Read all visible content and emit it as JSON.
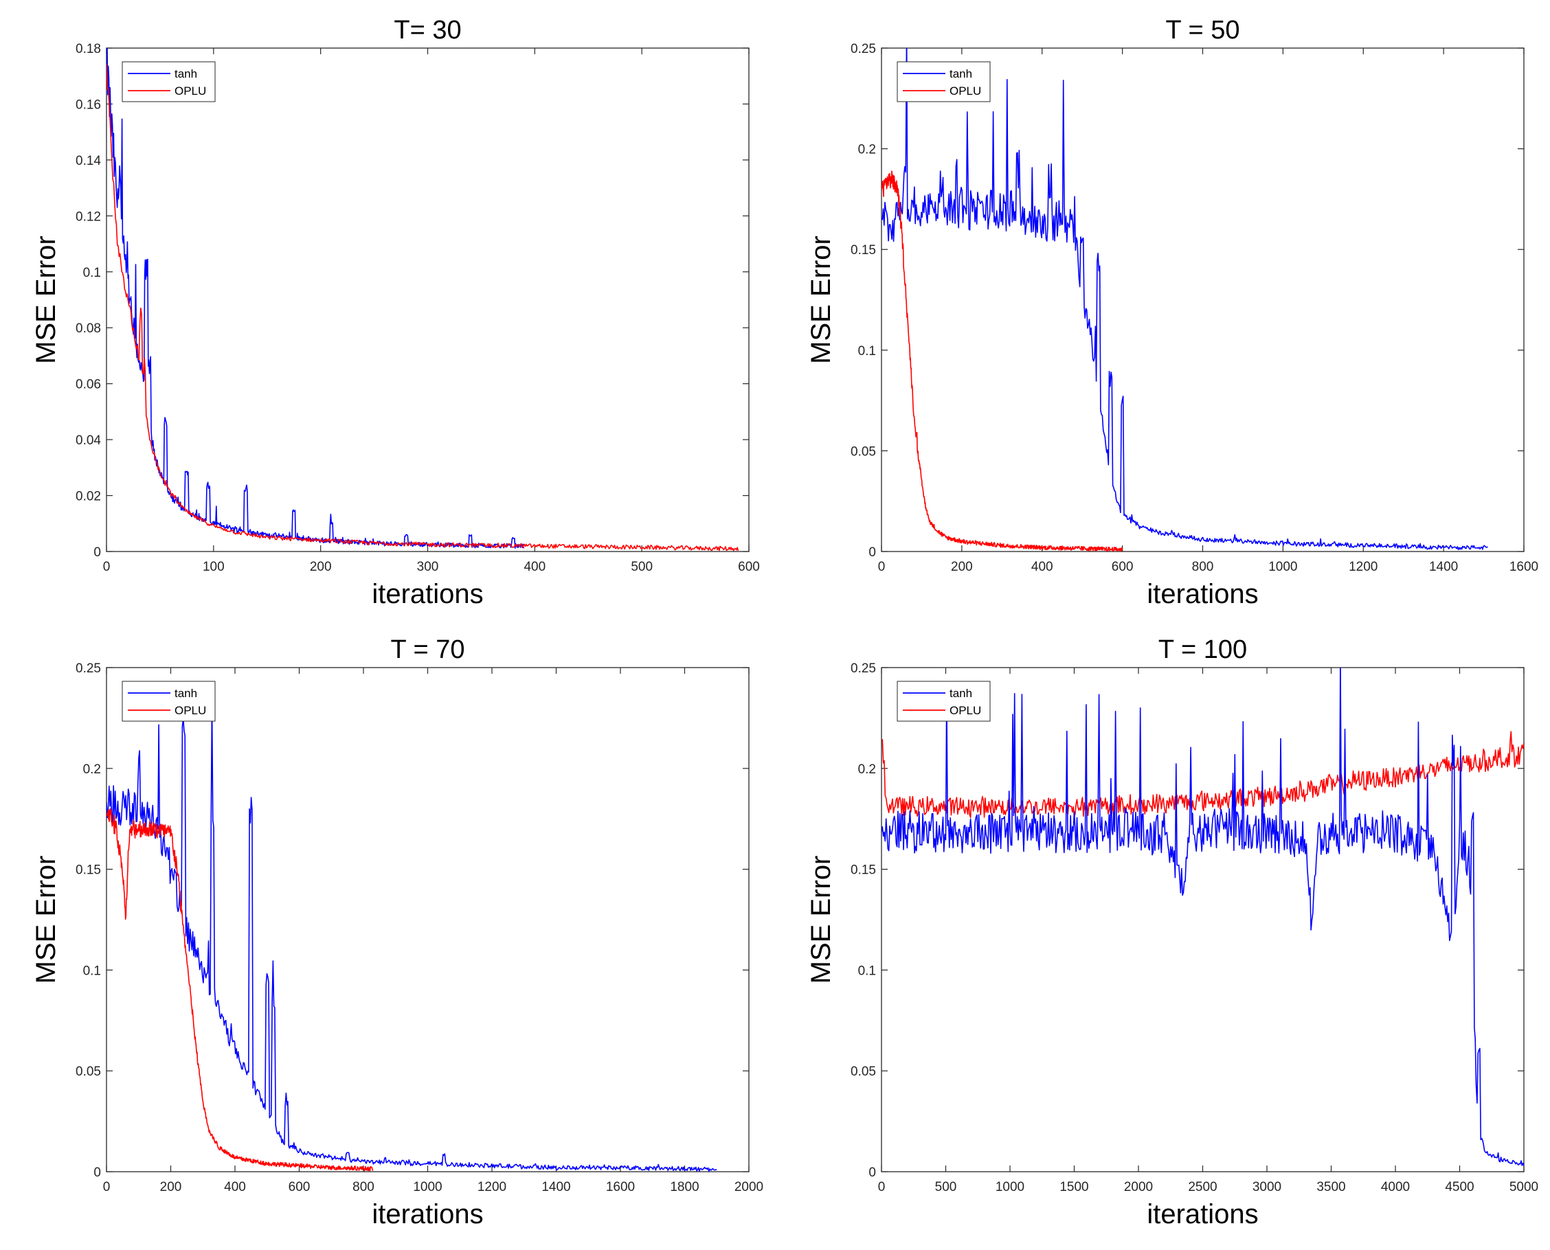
{
  "chart_data": [
    {
      "type": "line",
      "title": "T= 30",
      "xlabel": "iterations",
      "ylabel": "MSE Error",
      "xlim": [
        0,
        600
      ],
      "ylim": [
        0,
        0.18
      ],
      "xticks": [
        0,
        100,
        200,
        300,
        400,
        500,
        600
      ],
      "yticks": [
        0,
        0.02,
        0.04,
        0.06,
        0.08,
        0.1,
        0.12,
        0.14,
        0.16,
        0.18
      ],
      "xtick_labels": [
        "0",
        "100",
        "200",
        "300",
        "400",
        "500",
        "600"
      ],
      "ytick_labels": [
        "0",
        "0.02",
        "0.04",
        "0.06",
        "0.08",
        "0.1",
        "0.12",
        "0.14",
        "0.16",
        "0.18"
      ],
      "legend_position": "top-left",
      "series": [
        {
          "name": "tanh",
          "color": "#0000ff",
          "x": [
            0,
            5,
            10,
            15,
            20,
            25,
            30,
            35,
            40,
            45,
            50,
            60,
            70,
            80,
            100,
            120,
            150,
            200,
            250,
            300,
            350,
            390
          ],
          "y": [
            0.175,
            0.15,
            0.125,
            0.11,
            0.095,
            0.08,
            0.07,
            0.06,
            0.045,
            0.035,
            0.028,
            0.02,
            0.016,
            0.013,
            0.01,
            0.008,
            0.006,
            0.004,
            0.003,
            0.0025,
            0.002,
            0.002
          ],
          "spikes": [
            [
              12,
              0.14
            ],
            [
              37,
              0.105
            ],
            [
              40,
              0.07
            ],
            [
              55,
              0.048
            ],
            [
              75,
              0.03
            ],
            [
              95,
              0.025
            ],
            [
              130,
              0.024
            ],
            [
              175,
              0.015
            ],
            [
              210,
              0.011
            ],
            [
              280,
              0.006
            ],
            [
              340,
              0.006
            ],
            [
              380,
              0.005
            ]
          ]
        },
        {
          "name": "OPLU",
          "color": "#ff0000",
          "x": [
            0,
            5,
            10,
            15,
            20,
            25,
            30,
            35,
            40,
            50,
            60,
            70,
            80,
            100,
            120,
            150,
            200,
            250,
            300,
            400,
            500,
            590
          ],
          "y": [
            0.175,
            0.14,
            0.11,
            0.1,
            0.09,
            0.08,
            0.07,
            0.055,
            0.04,
            0.028,
            0.021,
            0.016,
            0.013,
            0.009,
            0.007,
            0.005,
            0.004,
            0.003,
            0.0025,
            0.002,
            0.0015,
            0.001
          ],
          "spikes": [
            [
              32,
              0.09
            ],
            [
              35,
              0.07
            ]
          ]
        }
      ]
    },
    {
      "type": "line",
      "title": "T = 50",
      "xlabel": "iterations",
      "ylabel": "MSE Error",
      "xlim": [
        0,
        1600
      ],
      "ylim": [
        0,
        0.25
      ],
      "xticks": [
        0,
        200,
        400,
        600,
        800,
        1000,
        1200,
        1400,
        1600
      ],
      "yticks": [
        0,
        0.05,
        0.1,
        0.15,
        0.2,
        0.25
      ],
      "xtick_labels": [
        "0",
        "200",
        "400",
        "600",
        "800",
        "1000",
        "1200",
        "1400",
        "1600"
      ],
      "ytick_labels": [
        "0",
        "0.05",
        "0.1",
        "0.15",
        "0.2",
        "0.25"
      ],
      "legend_position": "top-left",
      "series": [
        {
          "name": "tanh",
          "color": "#0000ff",
          "x": [
            0,
            20,
            40,
            60,
            100,
            200,
            300,
            350,
            400,
            450,
            480,
            500,
            520,
            540,
            560,
            580,
            600,
            650,
            700,
            800,
            1000,
            1200,
            1400,
            1510
          ],
          "y": [
            0.17,
            0.16,
            0.165,
            0.172,
            0.17,
            0.17,
            0.17,
            0.168,
            0.16,
            0.165,
            0.16,
            0.12,
            0.11,
            0.08,
            0.05,
            0.03,
            0.018,
            0.012,
            0.009,
            0.006,
            0.004,
            0.003,
            0.002,
            0.002
          ],
          "spikes": [
            [
              60,
              0.205
            ],
            [
              150,
              0.19
            ],
            [
              340,
              0.2
            ],
            [
              420,
              0.195
            ],
            [
              500,
              0.16
            ],
            [
              540,
              0.15
            ],
            [
              570,
              0.09
            ],
            [
              600,
              0.08
            ]
          ]
        },
        {
          "name": "OPLU",
          "color": "#ff0000",
          "x": [
            0,
            20,
            40,
            50,
            60,
            70,
            80,
            90,
            100,
            110,
            120,
            140,
            160,
            200,
            250,
            300,
            400,
            500,
            600
          ],
          "y": [
            0.18,
            0.185,
            0.18,
            0.16,
            0.13,
            0.1,
            0.07,
            0.05,
            0.035,
            0.022,
            0.015,
            0.01,
            0.007,
            0.005,
            0.004,
            0.003,
            0.002,
            0.0015,
            0.001
          ],
          "spikes": [
            [
              30,
              0.188
            ],
            [
              85,
              0.06
            ]
          ]
        }
      ]
    },
    {
      "type": "line",
      "title": "T = 70",
      "xlabel": "iterations",
      "ylabel": "MSE Error",
      "xlim": [
        0,
        2000
      ],
      "ylim": [
        0,
        0.25
      ],
      "xticks": [
        0,
        200,
        400,
        600,
        800,
        1000,
        1200,
        1400,
        1600,
        1800,
        2000
      ],
      "yticks": [
        0,
        0.05,
        0.1,
        0.15,
        0.2,
        0.25
      ],
      "xtick_labels": [
        "0",
        "200",
        "400",
        "600",
        "800",
        "1000",
        "1200",
        "1400",
        "1600",
        "1800",
        "2000"
      ],
      "ytick_labels": [
        "0",
        "0.05",
        "0.1",
        "0.15",
        "0.2",
        "0.25"
      ],
      "legend_position": "top-left",
      "series": [
        {
          "name": "tanh",
          "color": "#0000ff",
          "x": [
            0,
            50,
            100,
            150,
            200,
            250,
            300,
            350,
            400,
            450,
            500,
            550,
            600,
            700,
            800,
            1000,
            1200,
            1400,
            1600,
            1800,
            1900
          ],
          "y": [
            0.185,
            0.18,
            0.18,
            0.175,
            0.15,
            0.12,
            0.1,
            0.08,
            0.06,
            0.045,
            0.03,
            0.015,
            0.01,
            0.007,
            0.005,
            0.004,
            0.003,
            0.002,
            0.002,
            0.0015,
            0.001
          ],
          "spikes": [
            [
              100,
              0.21
            ],
            [
              240,
              0.225
            ],
            [
              330,
              0.18
            ],
            [
              450,
              0.187
            ],
            [
              500,
              0.1
            ],
            [
              520,
              0.09
            ],
            [
              560,
              0.035
            ],
            [
              750,
              0.01
            ],
            [
              1050,
              0.009
            ]
          ]
        },
        {
          "name": "OPLU",
          "color": "#ff0000",
          "x": [
            0,
            30,
            50,
            60,
            70,
            80,
            100,
            150,
            200,
            220,
            240,
            260,
            280,
            300,
            320,
            350,
            400,
            500,
            600,
            700,
            830
          ],
          "y": [
            0.18,
            0.17,
            0.15,
            0.125,
            0.165,
            0.17,
            0.17,
            0.17,
            0.168,
            0.15,
            0.12,
            0.09,
            0.06,
            0.035,
            0.02,
            0.012,
            0.007,
            0.004,
            0.003,
            0.002,
            0.0015
          ],
          "spikes": [
            [
              60,
              0.12
            ]
          ]
        }
      ]
    },
    {
      "type": "line",
      "title": "T = 100",
      "xlabel": "iterations",
      "ylabel": "MSE Error",
      "xlim": [
        0,
        5000
      ],
      "ylim": [
        0,
        0.25
      ],
      "xticks": [
        0,
        500,
        1000,
        1500,
        2000,
        2500,
        3000,
        3500,
        4000,
        4500,
        5000
      ],
      "yticks": [
        0,
        0.05,
        0.1,
        0.15,
        0.2,
        0.25
      ],
      "xtick_labels": [
        "0",
        "500",
        "1000",
        "1500",
        "2000",
        "2500",
        "3000",
        "3500",
        "4000",
        "4500",
        "5000"
      ],
      "ytick_labels": [
        "0",
        "0.05",
        "0.1",
        "0.15",
        "0.2",
        "0.25"
      ],
      "legend_position": "top-left",
      "series": [
        {
          "name": "tanh",
          "color": "#0000ff",
          "x": [
            0,
            500,
            1000,
            1500,
            2000,
            2100,
            2200,
            2300,
            2350,
            2400,
            2600,
            3000,
            3300,
            3350,
            3400,
            3800,
            4000,
            4300,
            4450,
            4500,
            4550,
            4600,
            4620,
            4650,
            4700,
            4800,
            5000
          ],
          "y": [
            0.17,
            0.168,
            0.168,
            0.168,
            0.17,
            0.165,
            0.17,
            0.15,
            0.14,
            0.168,
            0.17,
            0.168,
            0.165,
            0.12,
            0.168,
            0.168,
            0.168,
            0.16,
            0.11,
            0.168,
            0.16,
            0.12,
            0.05,
            0.02,
            0.01,
            0.006,
            0.004
          ],
          "spikes": [
            [
              2350,
              0.135
            ],
            [
              3350,
              0.115
            ],
            [
              3800,
              0.112
            ],
            [
              4450,
              0.105
            ],
            [
              4600,
              0.19
            ],
            [
              4450,
              0.22
            ],
            [
              4650,
              0.065
            ]
          ]
        },
        {
          "name": "OPLU",
          "color": "#ff0000",
          "x": [
            0,
            20,
            50,
            200,
            500,
            1000,
            1500,
            2000,
            2500,
            3000,
            3200,
            3500,
            4000,
            4500,
            5000
          ],
          "y": [
            0.19,
            0.185,
            0.182,
            0.181,
            0.181,
            0.181,
            0.181,
            0.182,
            0.184,
            0.186,
            0.188,
            0.192,
            0.196,
            0.202,
            0.207
          ],
          "spikes": [
            [
              10,
              0.218
            ],
            [
              4900,
              0.22
            ]
          ]
        }
      ]
    }
  ]
}
